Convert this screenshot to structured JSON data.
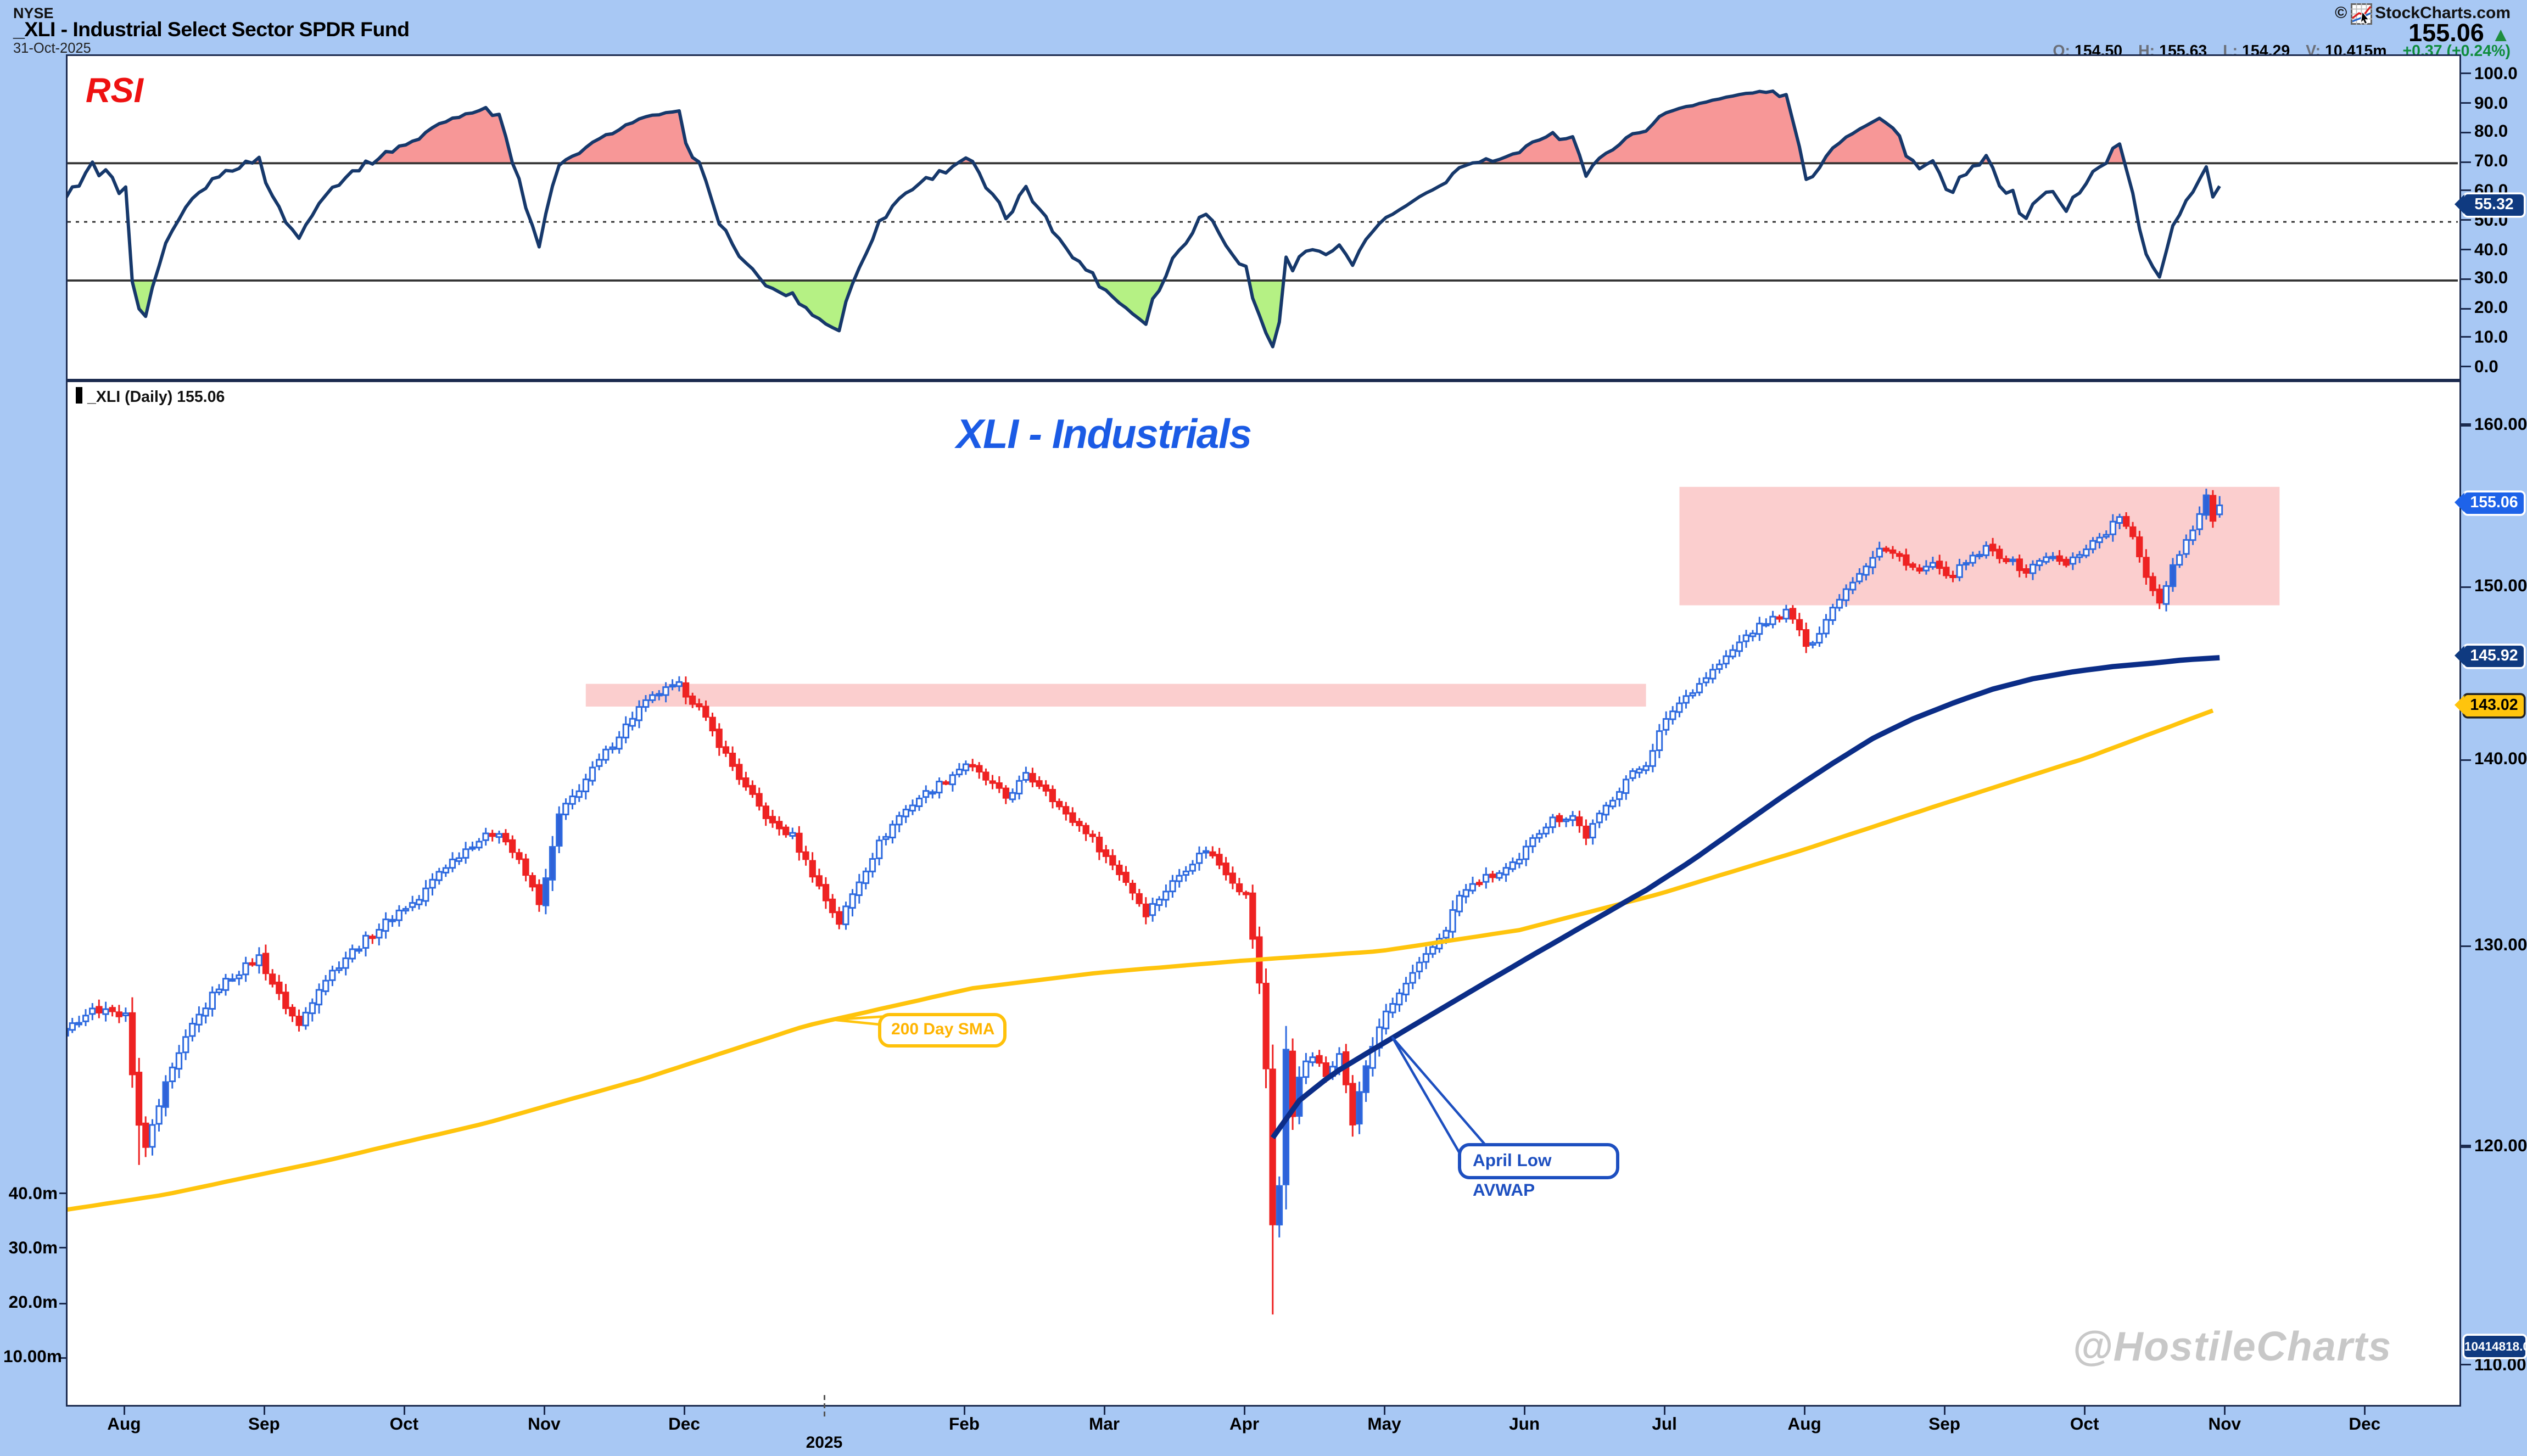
{
  "header": {
    "exchange": "NYSE",
    "title": "_XLI - Industrial Select Sector SPDR Fund",
    "date": "31-Oct-2025",
    "copyright": "©",
    "brand": "StockCharts.com",
    "last_price": "155.06",
    "direction_icon": "▲",
    "quote": {
      "o_label": "O:",
      "o": "154.50",
      "h_label": "H:",
      "h": "155.63",
      "l_label": "L:",
      "l": "154.29",
      "v_label": "V:",
      "v": "10.415m",
      "change": "+0.37 (+0.24%)"
    }
  },
  "rsi_panel": {
    "label": "RSI",
    "badge": "55.32"
  },
  "main_panel": {
    "series_label": "_XLI (Daily) 155.06",
    "chart_title": "XLI - Industrials",
    "price_badge": "155.06",
    "avwap_badge": "145.92",
    "sma_badge": "143.02",
    "volume_badge": "10414818.0",
    "sma_callout": "200 Day SMA",
    "avwap_callout": "April Low AVWAP",
    "watermark": "@HostileCharts"
  },
  "colors": {
    "background": "#a8c8f4",
    "panel_border": "#1b2a4e",
    "candle_up": "#2e6adf",
    "candle_up_fill": "#2f62d8",
    "candle_down": "#ee2222",
    "rsi_line": "#16386b",
    "sma_line": "#ffc40d",
    "avwap_line": "#0b2d87",
    "zone_pink": "rgba(244,118,118,0.36)",
    "overbought_fill": "rgba(242,82,82,0.6)",
    "oversold_fill": "rgba(150,235,80,0.7)",
    "badge_navy": "#0f3a80",
    "badge_blue": "#1e63e9",
    "badge_yellow": "#ffc40d",
    "change_green": "#0f8c3c"
  },
  "chart_data": [
    {
      "panel": "rsi",
      "type": "line",
      "indicator": "RSI",
      "period": 14,
      "overbought": 70,
      "oversold": 30,
      "midline": 50,
      "last_value": 55.32,
      "tick_labels": [
        "100.0",
        "90.0",
        "80.0",
        "70.0",
        "60.0",
        "50.0",
        "40.0",
        "30.0",
        "20.0",
        "10.0",
        "0.0"
      ],
      "tick_values": [
        100,
        90,
        80,
        70,
        60,
        50,
        40,
        30,
        20,
        10,
        0
      ],
      "grid": "off",
      "legend_position": "top-left"
    },
    {
      "panel": "price",
      "type": "candlestick",
      "symbol": "XLI",
      "timeframe": "Daily",
      "last_close": 155.06,
      "ylim": [
        108,
        162
      ],
      "scale": "log",
      "price_ticks": [
        {
          "label": "160.00",
          "value": 160
        },
        {
          "label": "150.00",
          "value": 150
        },
        {
          "label": "140.00",
          "value": 140
        },
        {
          "label": "130.00",
          "value": 130
        },
        {
          "label": "120.00",
          "value": 120
        },
        {
          "label": "110.00",
          "value": 110
        }
      ],
      "volume_ticks": [
        {
          "label": "40.0m",
          "value": 40
        },
        {
          "label": "30.0m",
          "value": 30
        },
        {
          "label": "20.0m",
          "value": 20
        },
        {
          "label": "10.00m",
          "value": 10
        }
      ],
      "last_volume": 10414818.0,
      "x_ticks": [
        {
          "label": "Aug",
          "day": 0
        },
        {
          "label": "Sep",
          "day": 21
        },
        {
          "label": "Oct",
          "day": 42
        },
        {
          "label": "Nov",
          "day": 63
        },
        {
          "label": "Dec",
          "day": 84
        },
        {
          "label": "Feb",
          "day": 126
        },
        {
          "label": "Mar",
          "day": 147
        },
        {
          "label": "Apr",
          "day": 168
        },
        {
          "label": "May",
          "day": 189
        },
        {
          "label": "Jun",
          "day": 210
        },
        {
          "label": "Jul",
          "day": 231
        },
        {
          "label": "Aug",
          "day": 252
        },
        {
          "label": "Sep",
          "day": 273
        },
        {
          "label": "Oct",
          "day": 294
        },
        {
          "label": "Nov",
          "day": 315
        },
        {
          "label": "Dec",
          "day": 336
        }
      ],
      "year_tick": {
        "label": "2025",
        "day": 105
      },
      "last_candle": {
        "open": 154.5,
        "high": 155.63,
        "low": 154.29,
        "close": 155.06
      },
      "wick_low_overrides": {
        "2": 119.2,
        "172": 112.3
      },
      "price_path_keypoints": [
        [
          -30,
          125.5
        ],
        [
          -20,
          126.5
        ],
        [
          -11,
          125.2
        ],
        [
          -5,
          126.8
        ],
        [
          0,
          126.5
        ],
        [
          2,
          121.0
        ],
        [
          3,
          120.0
        ],
        [
          6,
          123.0
        ],
        [
          10,
          126.0
        ],
        [
          14,
          128.0
        ],
        [
          18,
          129.0
        ],
        [
          20,
          129.5
        ],
        [
          23,
          127.5
        ],
        [
          26,
          126.0
        ],
        [
          29,
          128.0
        ],
        [
          33,
          129.5
        ],
        [
          38,
          131.0
        ],
        [
          41,
          131.9
        ],
        [
          44,
          132.5
        ],
        [
          47,
          134.0
        ],
        [
          52,
          135.5
        ],
        [
          56,
          136.2
        ],
        [
          59,
          134.5
        ],
        [
          62,
          132.4
        ],
        [
          63,
          133.5
        ],
        [
          65,
          137.0
        ],
        [
          68,
          138.5
        ],
        [
          71,
          140.0
        ],
        [
          74,
          141.5
        ],
        [
          77,
          143.0
        ],
        [
          80,
          143.9
        ],
        [
          83,
          144.3
        ],
        [
          86,
          143.0
        ],
        [
          89,
          141.0
        ],
        [
          93,
          138.5
        ],
        [
          97,
          136.5
        ],
        [
          100,
          135.9
        ],
        [
          101,
          135.2
        ],
        [
          103,
          133.9
        ],
        [
          105,
          132.5
        ],
        [
          107,
          131.3
        ],
        [
          110,
          133.5
        ],
        [
          113,
          135.5
        ],
        [
          116,
          137.0
        ],
        [
          119,
          138.0
        ],
        [
          123,
          139.0
        ],
        [
          126,
          139.9
        ],
        [
          129,
          139.0
        ],
        [
          132,
          138.0
        ],
        [
          135,
          139.2
        ],
        [
          138,
          138.5
        ],
        [
          141,
          137.0
        ],
        [
          144,
          136.2
        ],
        [
          147,
          134.8
        ],
        [
          150,
          133.5
        ],
        [
          153,
          131.8
        ],
        [
          156,
          133.0
        ],
        [
          159,
          134.2
        ],
        [
          162,
          135.2
        ],
        [
          165,
          134.0
        ],
        [
          167,
          133.1
        ],
        [
          168,
          132.7
        ],
        [
          169,
          130.5
        ],
        [
          170,
          128.1
        ],
        [
          171,
          123.9
        ],
        [
          172,
          116.5
        ],
        [
          173,
          118.2
        ],
        [
          174,
          124.7
        ],
        [
          175,
          121.6
        ],
        [
          176,
          123.6
        ],
        [
          178,
          124.5
        ],
        [
          180,
          123.5
        ],
        [
          182,
          124.8
        ],
        [
          184,
          121.2
        ],
        [
          186,
          124.0
        ],
        [
          188,
          126.0
        ],
        [
          190,
          127.1
        ],
        [
          192,
          128.1
        ],
        [
          195,
          129.5
        ],
        [
          198,
          131.0
        ],
        [
          200,
          132.7
        ],
        [
          203,
          133.5
        ],
        [
          206,
          133.9
        ],
        [
          209,
          134.5
        ],
        [
          211,
          135.9
        ],
        [
          214,
          136.8
        ],
        [
          217,
          137.0
        ],
        [
          219,
          135.9
        ],
        [
          222,
          137.5
        ],
        [
          225,
          139.0
        ],
        [
          228,
          139.9
        ],
        [
          230,
          141.6
        ],
        [
          232,
          142.9
        ],
        [
          234,
          143.7
        ],
        [
          237,
          144.8
        ],
        [
          240,
          145.9
        ],
        [
          243,
          147.2
        ],
        [
          246,
          148.0
        ],
        [
          249,
          148.6
        ],
        [
          251,
          147.6
        ],
        [
          252,
          146.4
        ],
        [
          254,
          147.5
        ],
        [
          257,
          149.5
        ],
        [
          260,
          151.0
        ],
        [
          263,
          152.4
        ],
        [
          266,
          151.9
        ],
        [
          269,
          151.0
        ],
        [
          271,
          151.5
        ],
        [
          273,
          150.6
        ],
        [
          276,
          151.5
        ],
        [
          279,
          152.4
        ],
        [
          282,
          151.8
        ],
        [
          285,
          151.0
        ],
        [
          288,
          152.0
        ],
        [
          291,
          151.4
        ],
        [
          294,
          152.5
        ],
        [
          297,
          153.4
        ],
        [
          299,
          154.4
        ],
        [
          301,
          153.0
        ],
        [
          303,
          150.8
        ],
        [
          305,
          149.2
        ],
        [
          307,
          151.4
        ],
        [
          309,
          152.9
        ],
        [
          311,
          154.5
        ],
        [
          312,
          155.6
        ],
        [
          313,
          154.2
        ],
        [
          314,
          155.06
        ]
      ],
      "sma_200": {
        "label": "200 Day SMA",
        "last": 143.02,
        "points": [
          [
            -15,
            116.8
          ],
          [
            6,
            117.8
          ],
          [
            30,
            119.4
          ],
          [
            54,
            121.2
          ],
          [
            78,
            123.4
          ],
          [
            102,
            126.0
          ],
          [
            127,
            127.9
          ],
          [
            146,
            128.7
          ],
          [
            167,
            129.3
          ],
          [
            188,
            129.8
          ],
          [
            209,
            130.9
          ],
          [
            230,
            132.8
          ],
          [
            252,
            135.2
          ],
          [
            272,
            137.6
          ],
          [
            294,
            140.2
          ],
          [
            304,
            141.6
          ],
          [
            314,
            143.02
          ]
        ]
      },
      "avwap_april_low": {
        "label": "April Low AVWAP",
        "last": 145.92,
        "points": [
          [
            172,
            120.5
          ],
          [
            176,
            122.3
          ],
          [
            181,
            123.6
          ],
          [
            187,
            124.8
          ],
          [
            193,
            126.0
          ],
          [
            200,
            127.4
          ],
          [
            207,
            128.8
          ],
          [
            214,
            130.2
          ],
          [
            221,
            131.6
          ],
          [
            228,
            133.0
          ],
          [
            235,
            134.6
          ],
          [
            242,
            136.4
          ],
          [
            249,
            138.2
          ],
          [
            256,
            139.9
          ],
          [
            262,
            141.3
          ],
          [
            268,
            142.4
          ],
          [
            274,
            143.3
          ],
          [
            280,
            144.1
          ],
          [
            286,
            144.7
          ],
          [
            292,
            145.1
          ],
          [
            298,
            145.4
          ],
          [
            304,
            145.6
          ],
          [
            309,
            145.8
          ],
          [
            314,
            145.92
          ]
        ]
      },
      "resistance_zones": [
        {
          "day_start": 69,
          "day_end": 228,
          "price_low": 143.1,
          "price_high": 144.4
        },
        {
          "day_start": 233,
          "day_end": 323,
          "price_low": 149.0,
          "price_high": 156.2
        }
      ]
    }
  ]
}
